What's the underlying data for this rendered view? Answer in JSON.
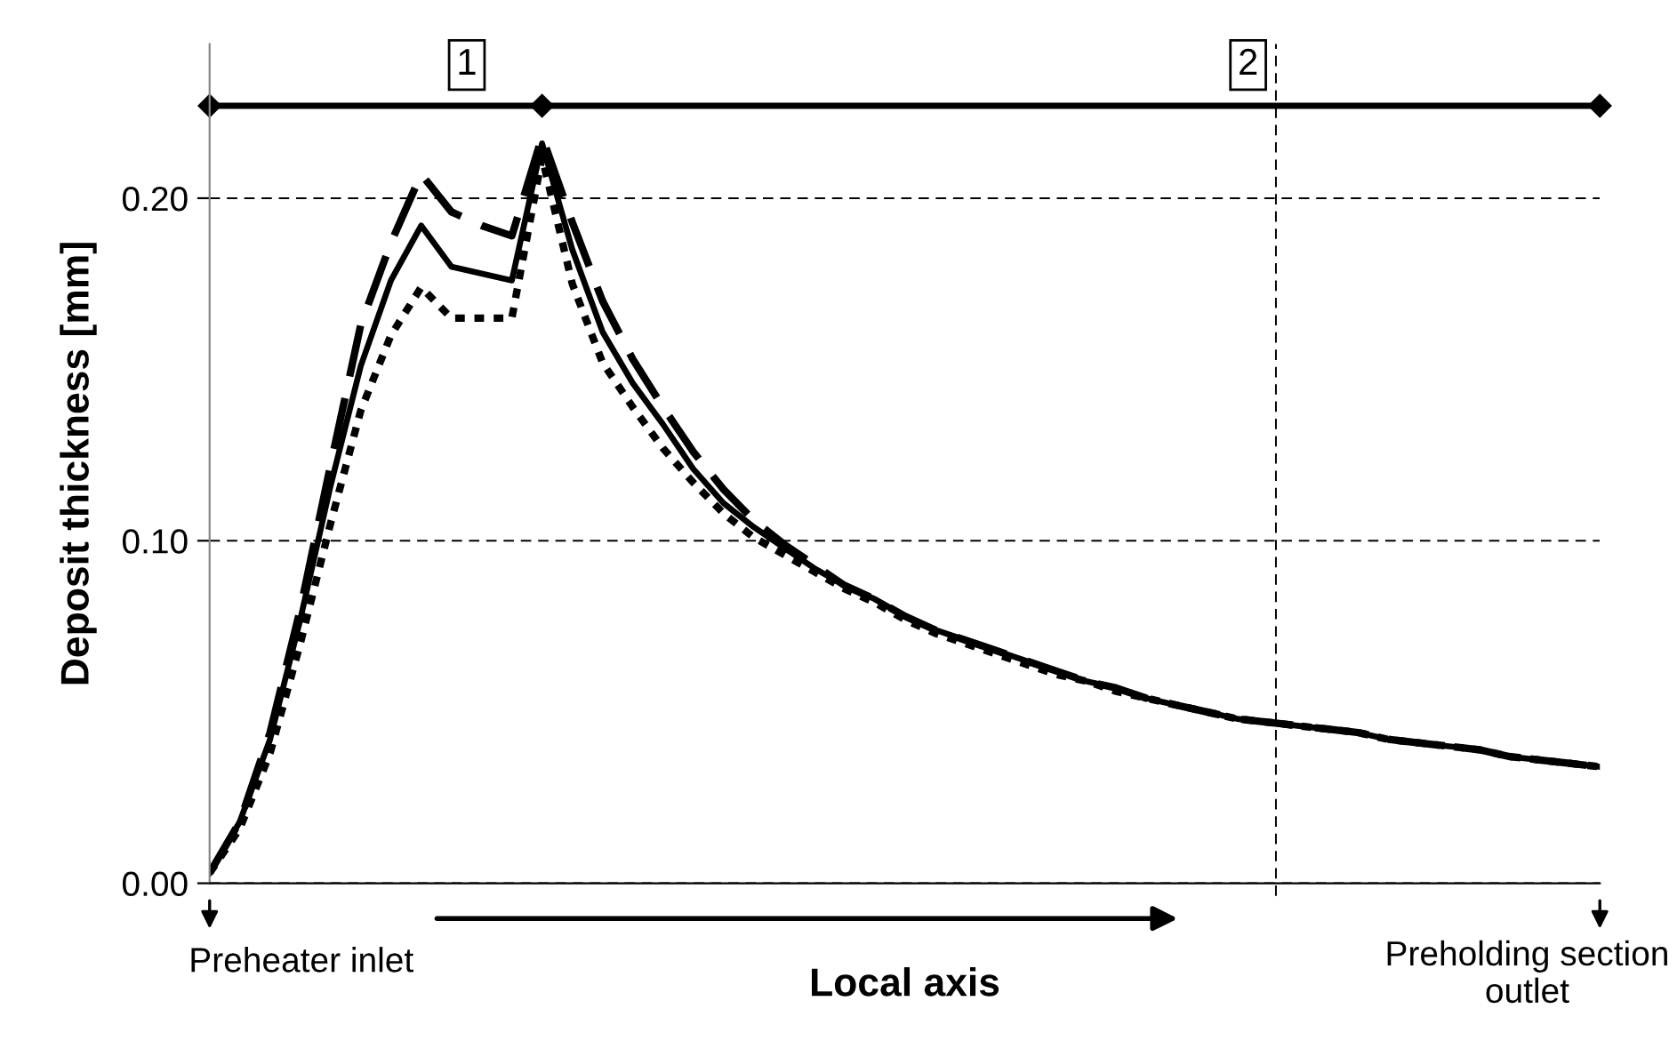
{
  "chart_data": {
    "type": "line",
    "xlabel": "Local axis",
    "ylabel": "Deposit thickness [mm]",
    "categories": [
      null,
      null,
      null,
      null,
      null,
      null,
      null,
      null,
      null,
      null,
      null,
      null,
      null,
      null,
      null,
      null,
      null,
      null,
      null,
      null,
      null,
      null,
      null,
      null,
      null,
      null,
      null,
      null,
      null,
      null,
      null,
      null,
      null,
      null,
      null,
      null,
      null,
      null,
      null,
      null,
      null,
      null,
      null,
      null,
      null,
      null,
      null
    ],
    "series": [
      {
        "color": "#000000",
        "line_style": "solid",
        "values": [
          0.003,
          0.018,
          0.042,
          0.077,
          0.116,
          0.151,
          0.176,
          0.192,
          0.18,
          0.178,
          0.176,
          0.216,
          0.185,
          0.161,
          0.146,
          0.134,
          0.121,
          0.111,
          0.104,
          0.098,
          0.092,
          0.087,
          0.083,
          0.078,
          0.074,
          0.071,
          0.068,
          0.065,
          0.062,
          0.059,
          0.057,
          0.054,
          0.052,
          0.05,
          0.048,
          0.047,
          0.046,
          0.045,
          0.044,
          0.042,
          0.041,
          0.04,
          0.039,
          0.037,
          0.036,
          0.035,
          0.034
        ]
      },
      {
        "color": "#000000",
        "line_style": "dashed",
        "values": [
          0.003,
          0.018,
          0.044,
          0.08,
          0.122,
          0.163,
          0.187,
          0.207,
          0.196,
          0.192,
          0.189,
          0.218,
          0.193,
          0.17,
          0.153,
          0.139,
          0.126,
          0.115,
          0.106,
          0.099,
          0.093,
          0.087,
          0.083,
          0.078,
          0.074,
          0.071,
          0.068,
          0.065,
          0.062,
          0.059,
          0.057,
          0.054,
          0.052,
          0.05,
          0.048,
          0.047,
          0.046,
          0.045,
          0.044,
          0.042,
          0.041,
          0.04,
          0.039,
          0.037,
          0.036,
          0.035,
          0.034
        ]
      },
      {
        "color": "#000000",
        "line_style": "dotted",
        "values": [
          0.003,
          0.016,
          0.038,
          0.07,
          0.105,
          0.138,
          0.16,
          0.174,
          0.165,
          0.165,
          0.165,
          0.212,
          0.175,
          0.152,
          0.139,
          0.127,
          0.117,
          0.108,
          0.101,
          0.096,
          0.091,
          0.086,
          0.082,
          0.077,
          0.073,
          0.07,
          0.067,
          0.064,
          0.061,
          0.059,
          0.056,
          0.054,
          0.052,
          0.05,
          0.048,
          0.047,
          0.046,
          0.045,
          0.044,
          0.042,
          0.041,
          0.04,
          0.039,
          0.037,
          0.036,
          0.035,
          0.034
        ]
      }
    ],
    "ylim": [
      0,
      0.245
    ],
    "yticks": [
      {
        "value": 0,
        "label": "0.00"
      },
      {
        "value": 0.1,
        "label": "0.10"
      },
      {
        "value": 0.2,
        "label": "0.20"
      }
    ],
    "ref_lines": [
      {
        "axis": "y",
        "value": 0.227
      }
    ],
    "grid": "y",
    "legend": false,
    "tick_labels": "y",
    "annotations": [
      "1",
      "2",
      "Preheater inlet",
      "Preholding section\noutlet"
    ]
  }
}
